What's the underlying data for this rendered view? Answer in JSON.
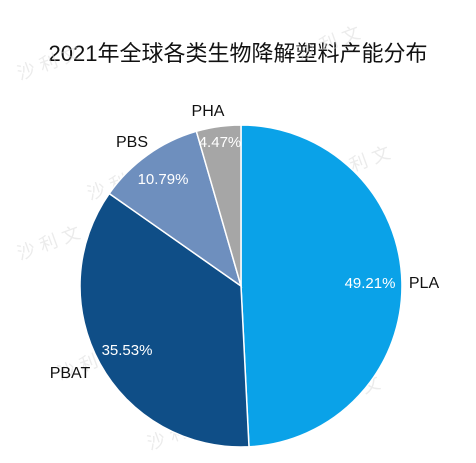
{
  "chart_data": {
    "type": "pie",
    "title": "2021年全球各类生物降解塑料产能分布",
    "slices": [
      {
        "label": "PLA",
        "value": 49.21,
        "value_label": "49.21%",
        "color": "#0aa2e8"
      },
      {
        "label": "PBAT",
        "value": 35.53,
        "value_label": "35.53%",
        "color": "#0f4e87"
      },
      {
        "label": "PBS",
        "value": 10.79,
        "value_label": "10.79%",
        "color": "#6e8fbe"
      },
      {
        "label": "PHA",
        "value": 4.47,
        "value_label": "4.47%",
        "color": "#a6a6a6"
      }
    ],
    "start_angle": "top",
    "direction": "clockwise",
    "legend": "none"
  },
  "watermark": "沙 利 文"
}
